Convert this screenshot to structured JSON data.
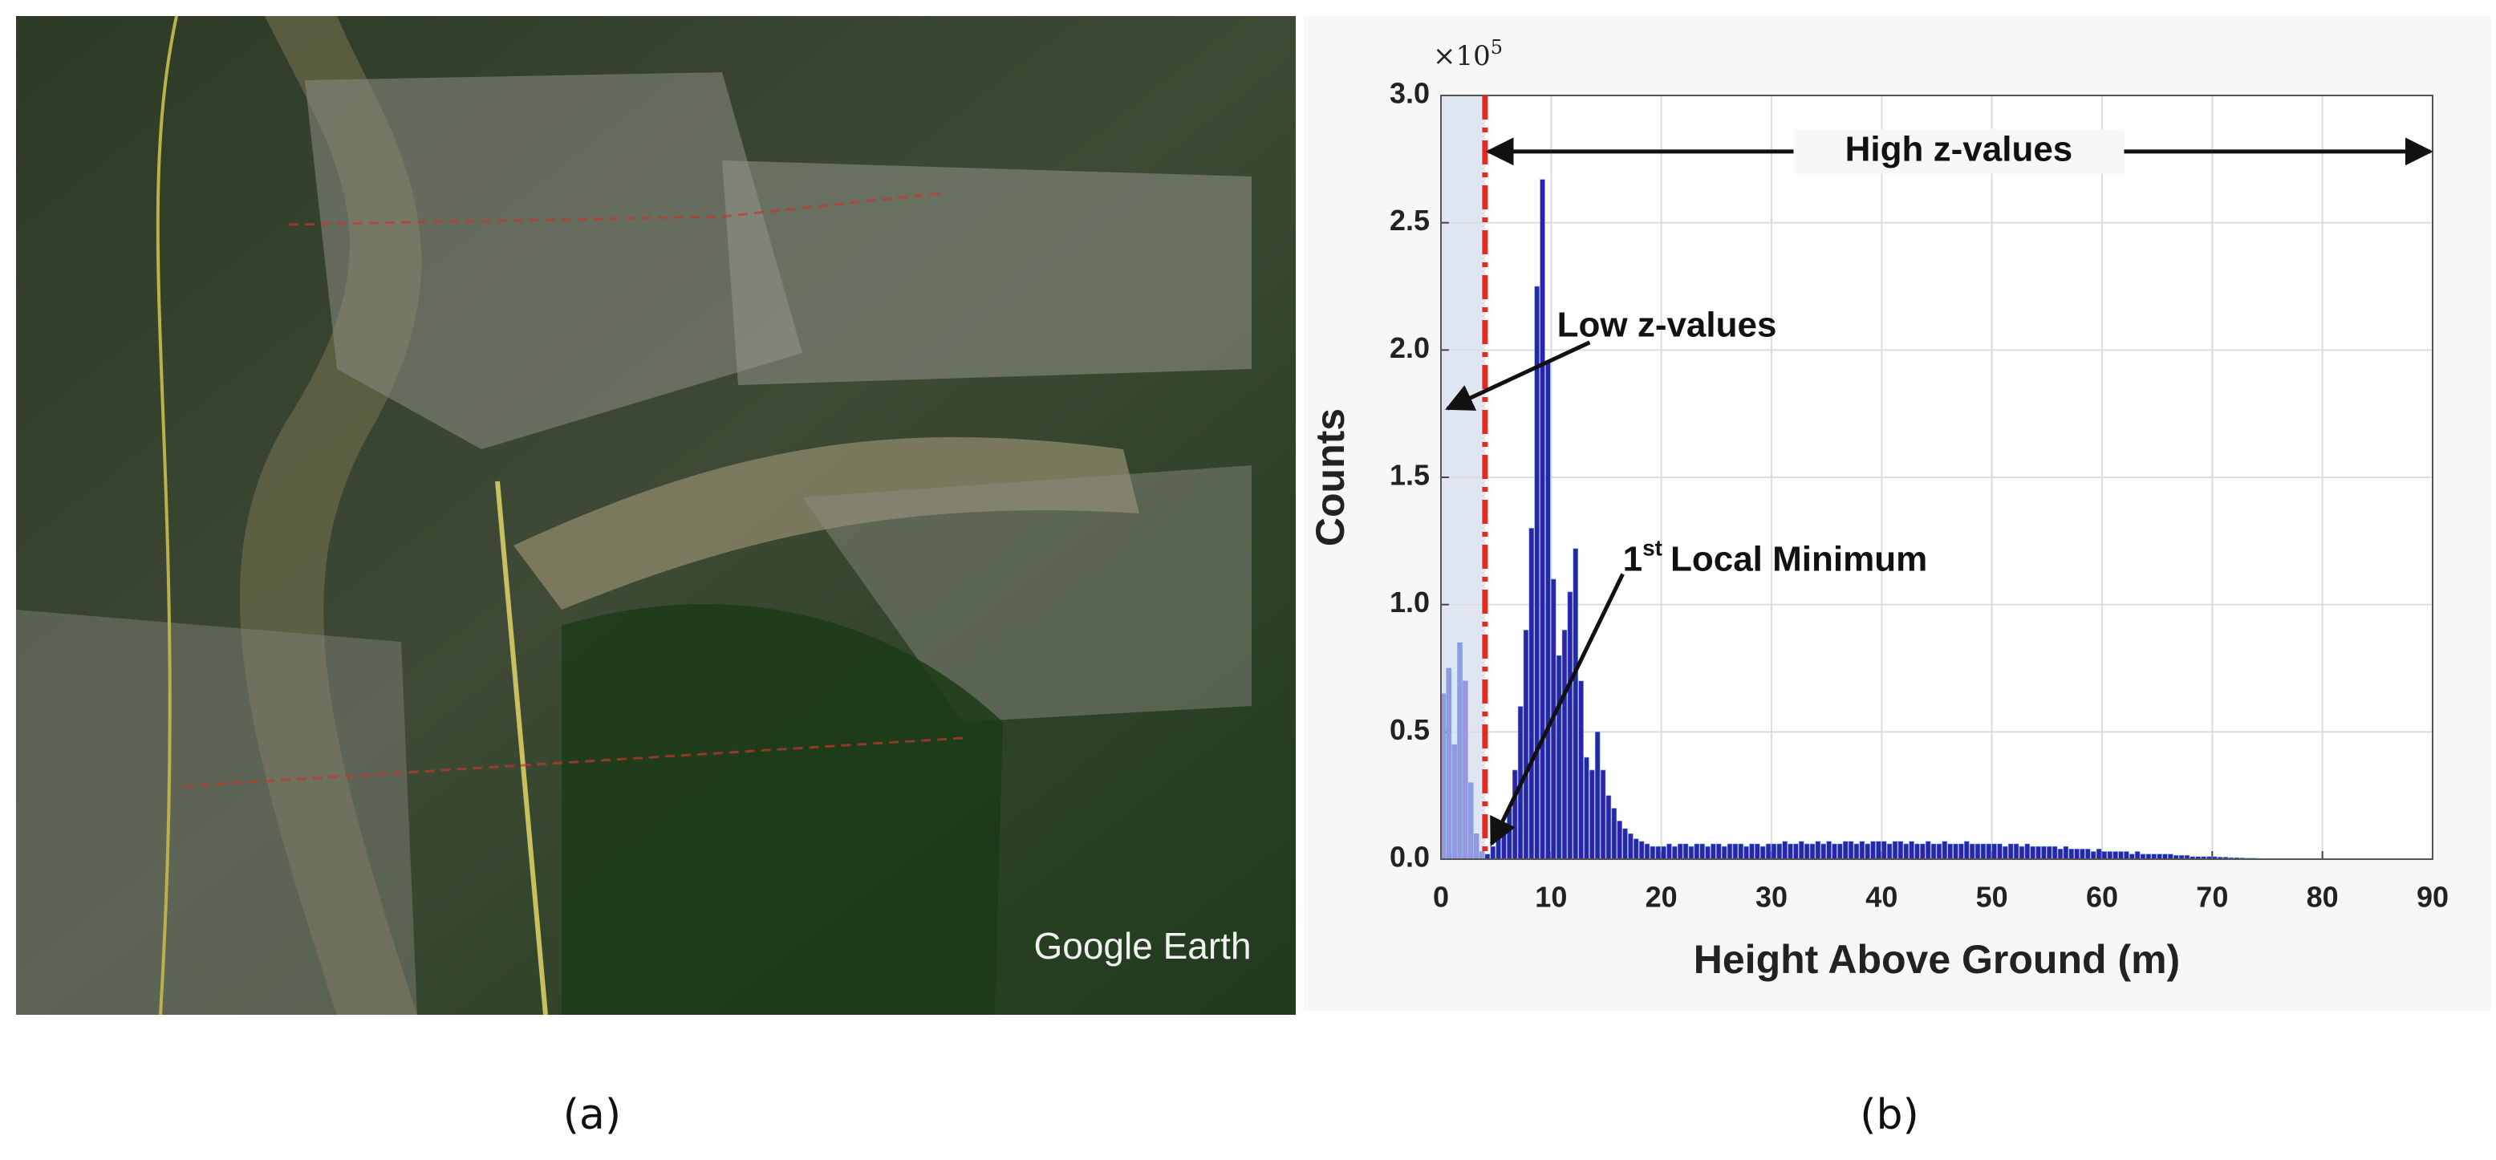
{
  "panels": {
    "a": {
      "label": "(a)",
      "watermark": "Google Earth"
    },
    "b": {
      "label": "(b)"
    }
  },
  "chart_data": {
    "type": "histogram",
    "xlabel": "Height Above Ground (m)",
    "ylabel": "Counts",
    "y_multiplier": {
      "base": "×10",
      "exponent": "5"
    },
    "annotations": {
      "high": "High z-values",
      "low": "Low z-values",
      "minimum": {
        "number": "1",
        "superscript": "st",
        "text": "Local Minimum"
      }
    },
    "threshold": 4,
    "colors": {
      "low": "#9c95e0",
      "high": "#2f22a8",
      "threshold": "#e8281e",
      "low_region": "#dfe6f1"
    },
    "grid": true,
    "xlim": [
      0,
      90
    ],
    "xticks": [
      0,
      10,
      20,
      30,
      40,
      50,
      60,
      70,
      80,
      90
    ],
    "ylim": [
      0,
      3
    ],
    "yticks": [
      {
        "value": 0,
        "label": "0.0"
      },
      0.5,
      {
        "value": 1,
        "label": "1.0"
      },
      1.5,
      {
        "value": 2,
        "label": "2.0"
      },
      2.5,
      {
        "value": 3,
        "label": "3.0"
      }
    ],
    "bins": [
      0,
      0.5,
      1,
      1.5,
      2,
      2.5,
      3,
      3.5,
      4,
      4.5,
      5,
      5.5,
      6,
      6.5,
      7,
      7.5,
      8,
      8.5,
      9,
      9.5,
      10,
      10.5,
      11,
      11.5,
      12,
      12.5,
      13,
      13.5,
      14,
      14.5,
      15,
      15.5,
      16,
      16.5,
      17,
      17.5,
      18,
      18.5,
      19,
      19.5,
      20,
      20.5,
      21,
      21.5,
      22,
      22.5,
      23,
      23.5,
      24,
      24.5,
      25,
      25.5,
      26,
      26.5,
      27,
      27.5,
      28,
      28.5,
      29,
      29.5,
      30,
      30.5,
      31,
      31.5,
      32,
      32.5,
      33,
      33.5,
      34,
      34.5,
      35,
      35.5,
      36,
      36.5,
      37,
      37.5,
      38,
      38.5,
      39,
      39.5,
      40,
      40.5,
      41,
      41.5,
      42,
      42.5,
      43,
      43.5,
      44,
      44.5,
      45,
      45.5,
      46,
      46.5,
      47,
      47.5,
      48,
      48.5,
      49,
      49.5,
      50,
      50.5,
      51,
      51.5,
      52,
      52.5,
      53,
      53.5,
      54,
      54.5,
      55,
      55.5,
      56,
      56.5,
      57,
      57.5,
      58,
      58.5,
      59,
      59.5,
      60,
      60.5,
      61,
      61.5,
      62,
      62.5,
      63,
      63.5,
      64,
      64.5,
      65,
      65.5,
      66,
      66.5,
      67,
      67.5,
      68,
      68.5,
      69,
      69.5,
      70,
      70.5,
      71,
      71.5,
      72,
      72.5,
      73,
      73.5,
      74,
      74.5,
      75
    ],
    "counts": [
      0.65,
      0.75,
      0.45,
      0.85,
      0.7,
      0.3,
      0.1,
      0.03,
      0.02,
      0.05,
      0.1,
      0.12,
      0.2,
      0.35,
      0.6,
      0.9,
      1.3,
      2.25,
      2.67,
      1.95,
      1.1,
      0.8,
      0.9,
      1.05,
      1.22,
      0.7,
      0.4,
      0.35,
      0.5,
      0.35,
      0.25,
      0.2,
      0.15,
      0.12,
      0.1,
      0.08,
      0.07,
      0.06,
      0.05,
      0.05,
      0.05,
      0.06,
      0.05,
      0.06,
      0.06,
      0.05,
      0.06,
      0.06,
      0.05,
      0.06,
      0.06,
      0.05,
      0.06,
      0.06,
      0.06,
      0.05,
      0.06,
      0.06,
      0.05,
      0.06,
      0.06,
      0.06,
      0.07,
      0.06,
      0.06,
      0.07,
      0.06,
      0.06,
      0.07,
      0.06,
      0.07,
      0.06,
      0.06,
      0.07,
      0.07,
      0.06,
      0.07,
      0.06,
      0.07,
      0.07,
      0.07,
      0.06,
      0.07,
      0.07,
      0.06,
      0.07,
      0.06,
      0.06,
      0.07,
      0.06,
      0.06,
      0.07,
      0.06,
      0.06,
      0.06,
      0.07,
      0.06,
      0.06,
      0.06,
      0.06,
      0.06,
      0.06,
      0.05,
      0.06,
      0.06,
      0.05,
      0.06,
      0.05,
      0.05,
      0.05,
      0.05,
      0.05,
      0.04,
      0.05,
      0.04,
      0.04,
      0.04,
      0.04,
      0.03,
      0.04,
      0.03,
      0.03,
      0.03,
      0.03,
      0.03,
      0.02,
      0.03,
      0.02,
      0.02,
      0.02,
      0.02,
      0.02,
      0.02,
      0.015,
      0.015,
      0.015,
      0.01,
      0.01,
      0.01,
      0.01,
      0.01,
      0.008,
      0.008,
      0.006,
      0.006,
      0.005,
      0.004,
      0.004,
      0.003,
      0.002
    ]
  }
}
